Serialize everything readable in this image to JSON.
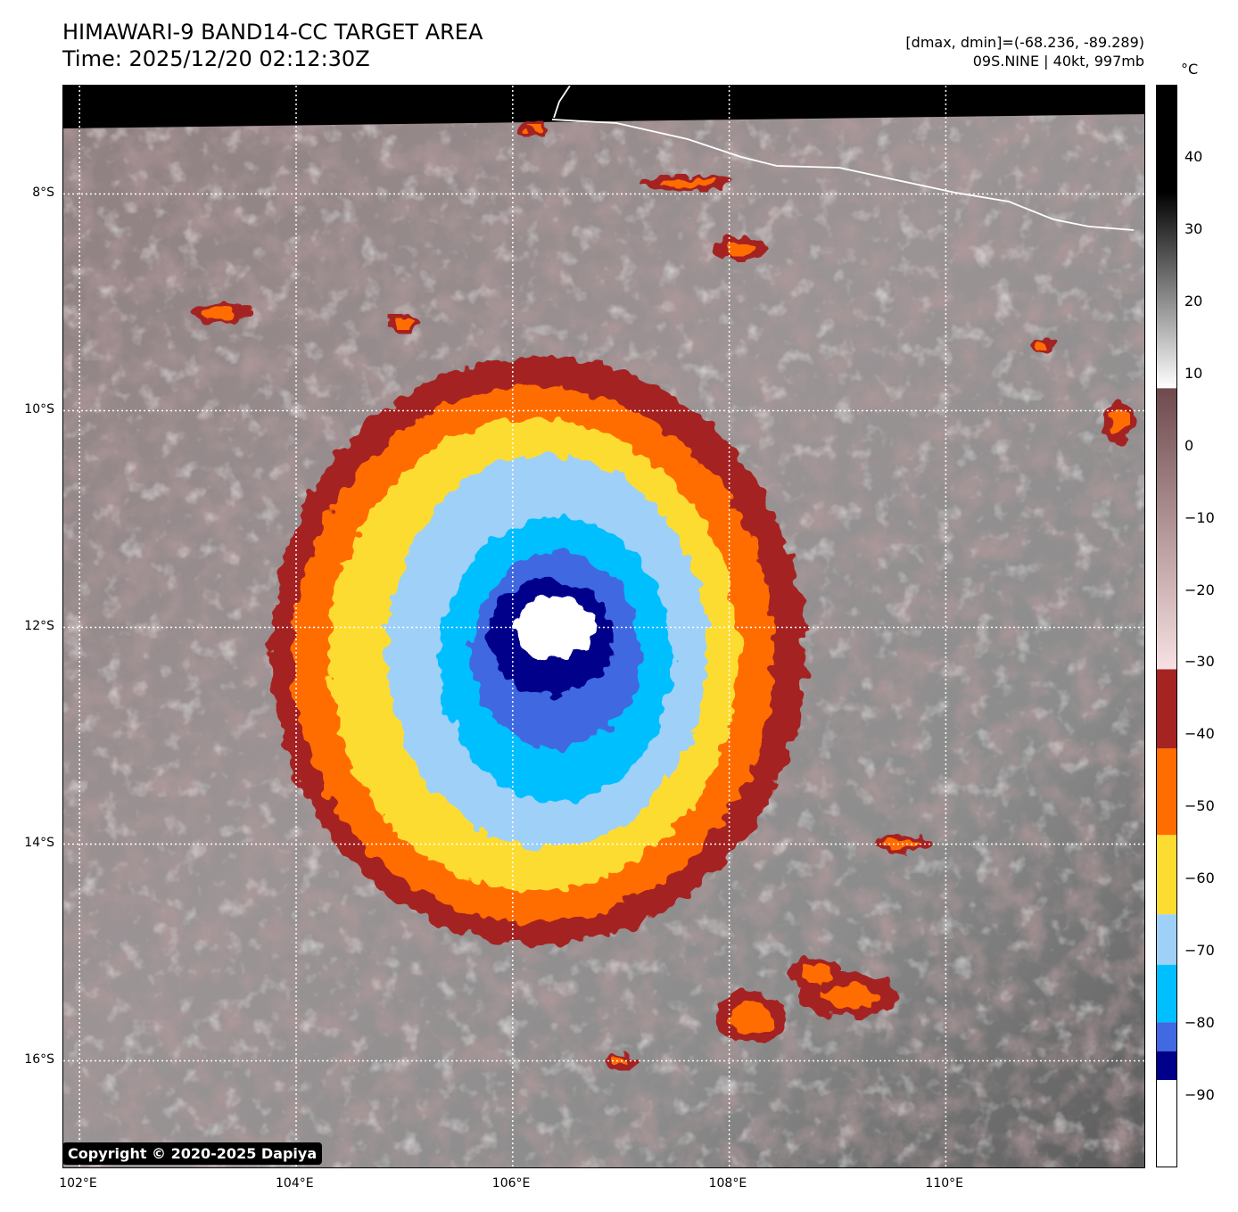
{
  "header": {
    "title_line1": "HIMAWARI-9 BAND14-CC TARGET AREA",
    "title_line2": "Time: 2025/12/20 02:12:30Z",
    "info_line1": "[dmax, dmin]=(-68.236, -89.289)",
    "info_line2": "09S.NINE | 40kt, 997mb"
  },
  "map": {
    "lon_range": [
      101.85,
      111.85
    ],
    "lat_range": [
      -17.0,
      -7.0
    ],
    "lat_ticks": [
      "8°S",
      "10°S",
      "12°S",
      "14°S",
      "16°S"
    ],
    "lon_ticks": [
      "102°E",
      "104°E",
      "106°E",
      "108°E",
      "110°E"
    ],
    "lat_values": [
      -8,
      -10,
      -12,
      -14,
      -16
    ],
    "lon_values": [
      102,
      104,
      106,
      108,
      110
    ],
    "storm_center": {
      "lon": 106.4,
      "lat": -12.05
    },
    "copyright": "Copyright © 2020-2025 Dapiya"
  },
  "colorbar": {
    "unit": "°C",
    "ticks": [
      "40",
      "30",
      "20",
      "10",
      "0",
      "−10",
      "−20",
      "−30",
      "−40",
      "−50",
      "−60",
      "−70",
      "−80",
      "−90"
    ],
    "tick_values": [
      40,
      30,
      20,
      10,
      0,
      -10,
      -20,
      -30,
      -40,
      -50,
      -60,
      -70,
      -80,
      -90
    ],
    "range": [
      -100,
      50
    ],
    "bands": [
      {
        "from": 8,
        "to": 50,
        "color": "gradient-gray"
      },
      {
        "from": -31,
        "to": 8,
        "color": "gradient-brown"
      },
      {
        "from": -42,
        "to": -31,
        "color": "#a52422"
      },
      {
        "from": -54,
        "to": -42,
        "color": "#ff6d00"
      },
      {
        "from": -65,
        "to": -54,
        "color": "#fddc32"
      },
      {
        "from": -72,
        "to": -65,
        "color": "#9fd0f8"
      },
      {
        "from": -80,
        "to": -72,
        "color": "#00bfff"
      },
      {
        "from": -84,
        "to": -80,
        "color": "#4169e1"
      },
      {
        "from": -88,
        "to": -84,
        "color": "#00008b"
      },
      {
        "from": -100,
        "to": -88,
        "color": "#ffffff"
      }
    ]
  },
  "colors": {
    "dark_red": "#a52422",
    "orange": "#ff6d00",
    "yellow": "#fddc32",
    "light_blue": "#9fd0f8",
    "deep_sky_blue": "#00bfff",
    "royal_blue": "#4169e1",
    "navy": "#00008b",
    "brown": "#7a5457",
    "pink": "#e9c9cb"
  }
}
